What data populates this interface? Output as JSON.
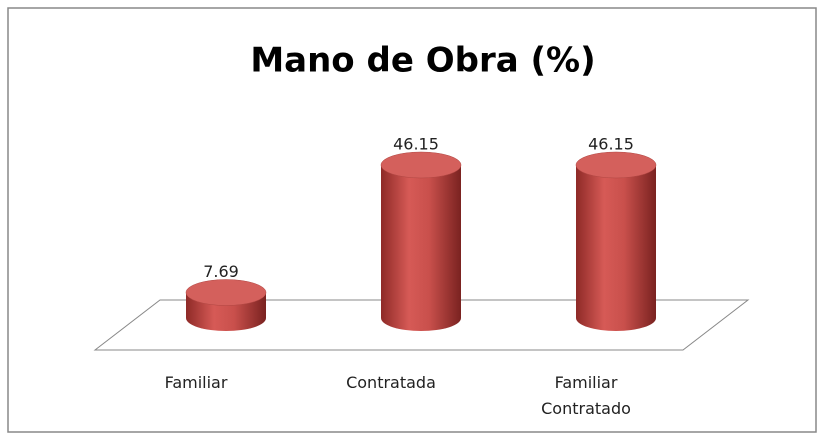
{
  "chart_data": {
    "type": "bar",
    "style": "3d-cylinder",
    "title": "Mano de Obra (%)",
    "categories": [
      "Familiar",
      "Contratada",
      "Familiar Contratado"
    ],
    "values": [
      7.69,
      46.15,
      46.15
    ],
    "color": "#c0504d"
  }
}
